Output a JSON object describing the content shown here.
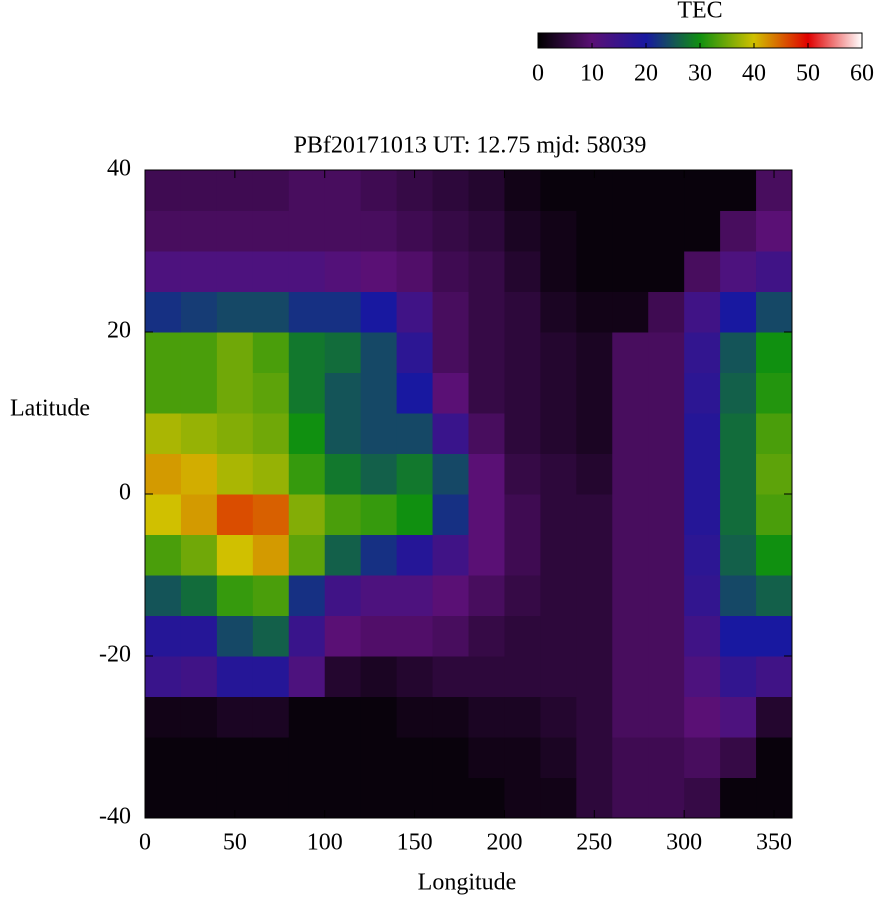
{
  "chart_data": {
    "type": "heatmap",
    "title": "PBf20171013  UT: 12.75  mjd: 58039",
    "xlabel": "Longitude",
    "ylabel": "Latitude",
    "x": [
      10,
      30,
      50,
      70,
      90,
      110,
      130,
      150,
      170,
      190,
      210,
      230,
      250,
      270,
      290,
      310,
      330,
      350
    ],
    "y": [
      -37.5,
      -32.5,
      -27.5,
      -22.5,
      -17.5,
      -12.5,
      -7.5,
      -2.5,
      2.5,
      7.5,
      12.5,
      17.5,
      22.5,
      27.5,
      32.5,
      37.5
    ],
    "values": [
      [
        1,
        1,
        1,
        1,
        1,
        1,
        1,
        1,
        1,
        1,
        2,
        2,
        5,
        7,
        7,
        6,
        1,
        1
      ],
      [
        1,
        1,
        1,
        1,
        1,
        1,
        1,
        1,
        1,
        2,
        2,
        3,
        5,
        7,
        7,
        8,
        6,
        1
      ],
      [
        2,
        2,
        3,
        3,
        1,
        1,
        1,
        2,
        2,
        3,
        3,
        4,
        5,
        8,
        8,
        10,
        12,
        4
      ],
      [
        15,
        14,
        18,
        18,
        12,
        4,
        3,
        4,
        5,
        5,
        5,
        5,
        5,
        8,
        8,
        12,
        16,
        14
      ],
      [
        18,
        18,
        24,
        26,
        15,
        10,
        9,
        9,
        8,
        6,
        5,
        5,
        5,
        8,
        8,
        14,
        20,
        20
      ],
      [
        25,
        27,
        32,
        33,
        22,
        14,
        12,
        12,
        10,
        8,
        6,
        5,
        5,
        8,
        8,
        16,
        24,
        26
      ],
      [
        33,
        35,
        40,
        42,
        34,
        26,
        22,
        18,
        14,
        10,
        7,
        5,
        5,
        8,
        8,
        17,
        26,
        30
      ],
      [
        40,
        42,
        46,
        45,
        36,
        33,
        32,
        30,
        22,
        10,
        7,
        5,
        5,
        8,
        8,
        18,
        27,
        33
      ],
      [
        42,
        41,
        38,
        37,
        32,
        28,
        26,
        28,
        24,
        10,
        6,
        5,
        4,
        8,
        8,
        18,
        27,
        34
      ],
      [
        38,
        37,
        36,
        35,
        30,
        25,
        24,
        24,
        15,
        8,
        5,
        4,
        3,
        8,
        8,
        18,
        27,
        33
      ],
      [
        33,
        33,
        35,
        34,
        28,
        25,
        24,
        20,
        10,
        6,
        5,
        4,
        3,
        8,
        8,
        17,
        26,
        31
      ],
      [
        33,
        33,
        35,
        33,
        28,
        27,
        24,
        17,
        8,
        6,
        5,
        4,
        3,
        8,
        8,
        16,
        25,
        30
      ],
      [
        22,
        23,
        24,
        24,
        22,
        22,
        20,
        14,
        8,
        6,
        5,
        3,
        2,
        2,
        7,
        14,
        20,
        24
      ],
      [
        12,
        12,
        12,
        12,
        12,
        11,
        10,
        9,
        7,
        6,
        4,
        2,
        1,
        1,
        1,
        8,
        12,
        14
      ],
      [
        8,
        8,
        8,
        8,
        8,
        8,
        8,
        7,
        6,
        5,
        3,
        2,
        1,
        1,
        1,
        1,
        8,
        10
      ],
      [
        7,
        7,
        7,
        7,
        8,
        8,
        7,
        6,
        5,
        4,
        2,
        1,
        1,
        1,
        1,
        1,
        1,
        8
      ]
    ],
    "xlim": [
      0,
      360
    ],
    "xticks": [
      0,
      50,
      100,
      150,
      200,
      250,
      300,
      350
    ],
    "ylim": [
      -40,
      40
    ],
    "yticks": [
      -40,
      -20,
      0,
      20,
      40
    ],
    "colormap": [
      "#000000",
      "#5a1075",
      "#1818a0",
      "#109010",
      "#d0c000",
      "#e00000",
      "#ffffff"
    ],
    "colorbar": {
      "title": "TEC",
      "zlim": [
        0,
        60
      ],
      "ticks": [
        0,
        10,
        20,
        30,
        40,
        50,
        60
      ]
    }
  }
}
